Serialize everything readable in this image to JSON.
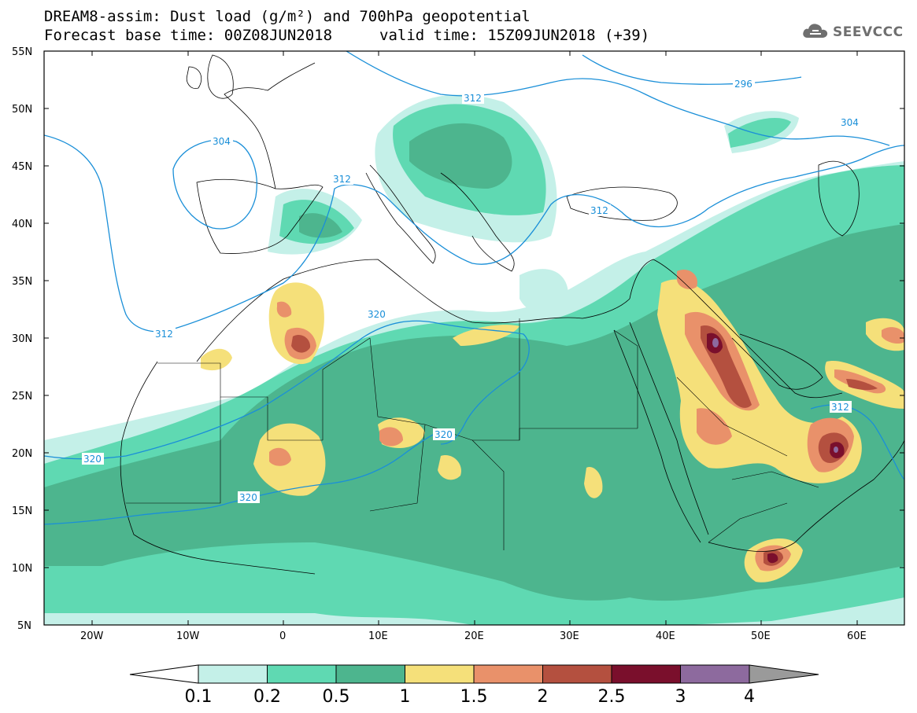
{
  "header": {
    "title_line1": "DREAM8-assim: Dust load (g/m²) and 700hPa geopotential",
    "title_line2": "Forecast base time: 00Z08JUN2018",
    "valid_time": "valid time: 15Z09JUN2018 (+39)"
  },
  "logo": {
    "text": "SEEVCCC",
    "icon": "cloud-icon"
  },
  "axes": {
    "lat_labels": [
      "55N",
      "50N",
      "45N",
      "40N",
      "35N",
      "30N",
      "25N",
      "20N",
      "15N",
      "10N",
      "5N"
    ],
    "lon_labels": [
      "20W",
      "10W",
      "0",
      "10E",
      "20E",
      "30E",
      "40E",
      "50E",
      "60E"
    ]
  },
  "contours": {
    "labels": [
      {
        "text": "296"
      },
      {
        "text": "304"
      },
      {
        "text": "304"
      },
      {
        "text": "312"
      },
      {
        "text": "312"
      },
      {
        "text": "312"
      },
      {
        "text": "312"
      },
      {
        "text": "312"
      },
      {
        "text": "320"
      },
      {
        "text": "320"
      },
      {
        "text": "320"
      },
      {
        "text": "320"
      }
    ]
  },
  "colorbar": {
    "labels": [
      "0.1",
      "0.2",
      "0.5",
      "1",
      "1.5",
      "2",
      "2.5",
      "3",
      "4"
    ],
    "colors": [
      "#c4f0e8",
      "#5fd9b2",
      "#4db58e",
      "#f5e07a",
      "#e9916a",
      "#b4503f",
      "#7a0f2c",
      "#8d6a9e"
    ],
    "over_color": "#9a9a9a",
    "under_color": "#ffffff"
  }
}
